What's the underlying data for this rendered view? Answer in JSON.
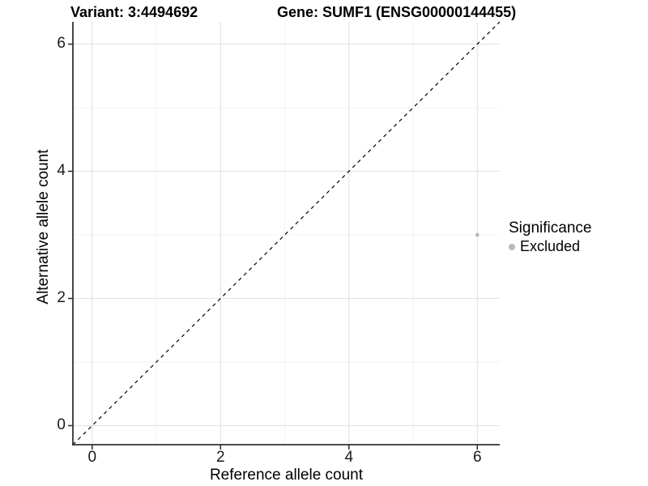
{
  "titles": {
    "variant": "Variant: 3:4494692",
    "gene": "Gene: SUMF1 (ENSG00000144455)"
  },
  "chart_data": {
    "type": "scatter",
    "title": "Variant: 3:4494692  Gene: SUMF1 (ENSG00000144455)",
    "xlabel": "Reference allele count",
    "ylabel": "Alternative allele count",
    "xlim": [
      -0.3,
      6.35
    ],
    "ylim": [
      -0.3,
      6.35
    ],
    "x_ticks": [
      0,
      2,
      4,
      6
    ],
    "y_ticks": [
      0,
      2,
      4,
      6
    ],
    "x_minor_ticks": [
      1,
      3,
      5
    ],
    "y_minor_ticks": [
      1,
      3,
      5
    ],
    "grid": true,
    "identity_line": {
      "present": true,
      "style": "dashed",
      "color": "#000000"
    },
    "series": [
      {
        "name": "Excluded",
        "points": [
          [
            6,
            3
          ]
        ],
        "color": "#b9b9b9"
      }
    ],
    "legend": {
      "title": "Significance",
      "position": "right",
      "items": [
        {
          "label": "Excluded",
          "color": "#b9b9b9"
        }
      ]
    }
  },
  "colors": {
    "background": "#ffffff",
    "grid_major": "#e3e3e3",
    "grid_minor": "#efefef",
    "axis_line": "#333333",
    "tick_mark": "#333333",
    "tick_text": "#1a1a1a",
    "point": "#b9b9b9",
    "dashed_line": "#000000"
  }
}
